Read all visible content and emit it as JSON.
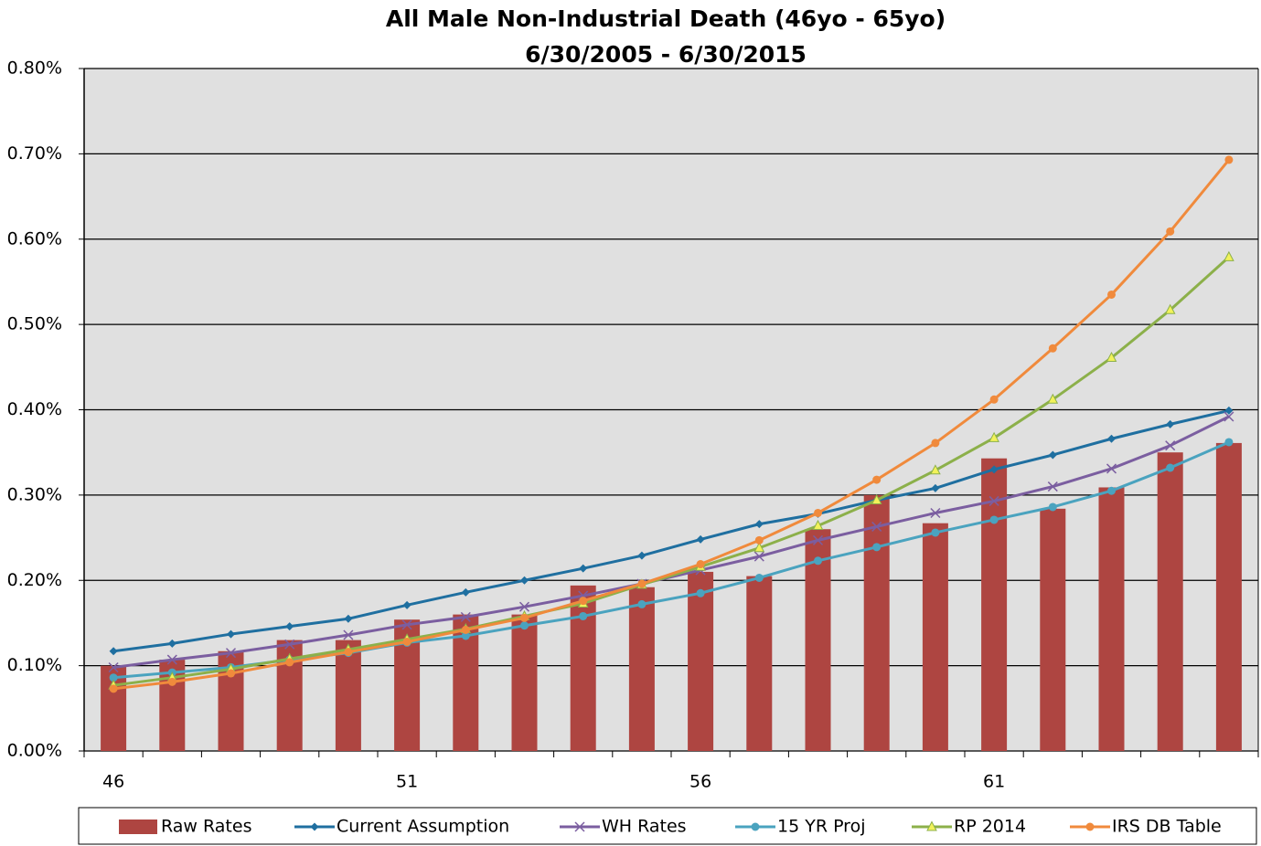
{
  "chart_data": {
    "type": "combo",
    "title": "All Male Non-Industrial  Death (46yo - 65yo)",
    "subtitle": "6/30/2005 - 6/30/2015",
    "categories": [
      "46",
      null,
      null,
      null,
      null,
      "51",
      null,
      null,
      null,
      null,
      "56",
      null,
      null,
      null,
      null,
      "61",
      null,
      null,
      null,
      null
    ],
    "ylim": [
      0,
      0.8
    ],
    "yticks": [
      {
        "value": 0,
        "label": "0.00%"
      },
      {
        "value": 0.1,
        "label": "0.10%"
      },
      {
        "value": 0.2,
        "label": "0.20%"
      },
      {
        "value": 0.3,
        "label": "0.30%"
      },
      {
        "value": 0.4,
        "label": "0.40%"
      },
      {
        "value": 0.5,
        "label": "0.50%"
      },
      {
        "value": 0.6,
        "label": "0.60%"
      },
      {
        "value": 0.7,
        "label": "0.70%"
      },
      {
        "value": 0.8,
        "label": "0.80%"
      }
    ],
    "grid": true,
    "legend": "bottom",
    "series": [
      {
        "name": "Raw Rates",
        "type": "bar",
        "color": "#ae4541",
        "values": [
          0.1,
          0.107,
          0.117,
          0.13,
          0.13,
          0.154,
          0.16,
          0.16,
          0.194,
          0.192,
          0.21,
          0.205,
          0.26,
          0.3,
          0.267,
          0.343,
          0.284,
          0.309,
          0.35,
          0.361
        ]
      },
      {
        "name": "Current Assumption",
        "type": "line",
        "marker": "diamond",
        "color": "#1f6fa0",
        "values": [
          0.117,
          0.126,
          0.137,
          0.146,
          0.155,
          0.171,
          0.186,
          0.2,
          0.214,
          0.229,
          0.248,
          0.266,
          0.278,
          0.294,
          0.308,
          0.33,
          0.347,
          0.366,
          0.383,
          0.399
        ]
      },
      {
        "name": "WH Rates",
        "type": "line",
        "marker": "x",
        "color": "#7b5ea0",
        "values": [
          0.098,
          0.107,
          0.115,
          0.125,
          0.136,
          0.148,
          0.157,
          0.169,
          0.182,
          0.196,
          0.212,
          0.228,
          0.247,
          0.263,
          0.279,
          0.293,
          0.31,
          0.331,
          0.358,
          0.392
        ]
      },
      {
        "name": "15 YR Proj",
        "type": "line",
        "marker": "circle",
        "color": "#4aa3bf",
        "values": [
          0.086,
          0.092,
          0.098,
          0.107,
          0.115,
          0.127,
          0.135,
          0.147,
          0.158,
          0.172,
          0.185,
          0.203,
          0.223,
          0.239,
          0.256,
          0.271,
          0.286,
          0.305,
          0.332,
          0.362
        ]
      },
      {
        "name": "RP 2014",
        "type": "line",
        "marker": "triangle",
        "color": "#8cb04a",
        "values": [
          0.077,
          0.086,
          0.096,
          0.108,
          0.119,
          0.131,
          0.143,
          0.158,
          0.173,
          0.195,
          0.216,
          0.238,
          0.264,
          0.294,
          0.329,
          0.367,
          0.412,
          0.461,
          0.517,
          0.579
        ]
      },
      {
        "name": "IRS DB Table",
        "type": "line",
        "marker": "circle",
        "color": "#f08a3c",
        "values": [
          0.073,
          0.081,
          0.091,
          0.104,
          0.116,
          0.128,
          0.142,
          0.156,
          0.176,
          0.196,
          0.219,
          0.247,
          0.279,
          0.318,
          0.361,
          0.412,
          0.472,
          0.535,
          0.609,
          0.693
        ]
      }
    ]
  }
}
